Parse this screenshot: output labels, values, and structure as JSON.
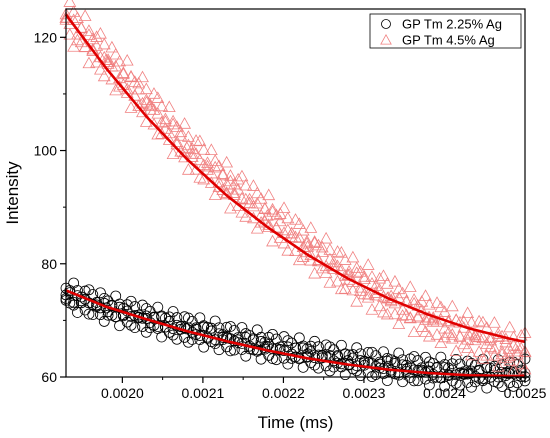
{
  "chart_data": {
    "type": "scatter",
    "xlabel": "Time (ms)",
    "ylabel": "Intensity",
    "xlim": [
      0.00193,
      0.0025
    ],
    "ylim": [
      60,
      125
    ],
    "x_ticks": [
      "0.0020",
      "0.0021",
      "0.0022",
      "0.0023",
      "0.0024",
      "0.0025"
    ],
    "y_ticks": [
      "60",
      "80",
      "100",
      "120"
    ],
    "legend": "top-right",
    "grid": false,
    "series": [
      {
        "name": "GP Tm 2.25% Ag",
        "marker": "circle",
        "color": "#000000",
        "x": [
          0.00193,
          0.00198,
          0.00203,
          0.00208,
          0.00213,
          0.00218,
          0.00223,
          0.00228,
          0.00233,
          0.00238,
          0.00243,
          0.00248,
          0.0025
        ],
        "y": [
          74.5,
          72.2,
          70.3,
          68.5,
          66.9,
          65.4,
          64.1,
          62.9,
          61.9,
          61.1,
          60.6,
          60.6,
          60.7
        ],
        "fit": {
          "color": "#e00000",
          "x": [
            0.00193,
            0.00198,
            0.00203,
            0.00208,
            0.00213,
            0.00218,
            0.00223,
            0.00228,
            0.00233,
            0.00238,
            0.00243,
            0.00248,
            0.0025
          ],
          "y": [
            75.3,
            72.4,
            70.2,
            68.1,
            66.3,
            64.7,
            63.3,
            62.2,
            61.3,
            60.7,
            60.3,
            60.2,
            60.2
          ]
        }
      },
      {
        "name": "GP Tm 4.5% Ag",
        "marker": "triangle",
        "color": "#f08080",
        "x": [
          0.00193,
          0.00198,
          0.00203,
          0.00208,
          0.00213,
          0.00218,
          0.00223,
          0.00228,
          0.00233,
          0.00238,
          0.00243,
          0.00248,
          0.0025
        ],
        "y": [
          123.5,
          116.0,
          108.5,
          100.5,
          94.0,
          88.5,
          83.0,
          78.0,
          74.0,
          70.5,
          67.5,
          65.0,
          64.5
        ],
        "fit": {
          "color": "#e00000",
          "x": [
            0.00193,
            0.00198,
            0.00203,
            0.00208,
            0.00213,
            0.00218,
            0.00223,
            0.00228,
            0.00233,
            0.00238,
            0.00243,
            0.00248,
            0.0025
          ],
          "y": [
            124.0,
            114.5,
            106.0,
            98.5,
            92.0,
            86.5,
            81.6,
            77.4,
            73.9,
            71.0,
            68.6,
            66.8,
            66.2
          ]
        }
      }
    ]
  }
}
